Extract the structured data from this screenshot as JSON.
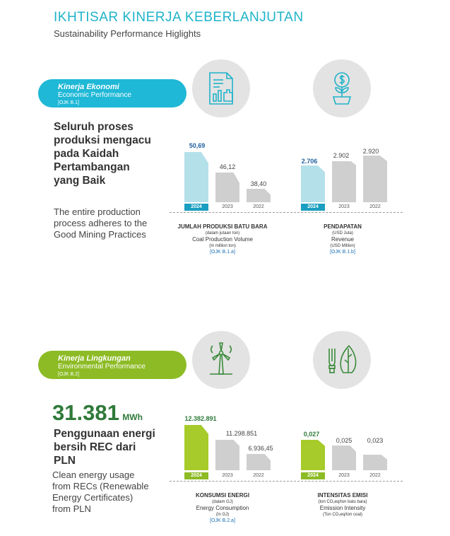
{
  "header": {
    "title_id": "IKHTISAR KINERJA KEBERLANJUTAN",
    "title_en": "Sustainability Performance Higlights"
  },
  "colors": {
    "accent_blue": "#1fb8d6",
    "accent_green": "#8dbb25",
    "bar_gray": "#cfcfcf"
  },
  "economic": {
    "pill": {
      "title_id": "Kinerja Ekonomi",
      "title_en": "Economic Performance",
      "ref": "[OJK B.1]"
    },
    "icons": [
      "building-chart-icon",
      "money-plant-icon"
    ],
    "headline": "Seluruh proses produksi mengacu pada Kaidah Pertambangan yang Baik",
    "subtext": "The entire production process adheres to the Good Mining Practices",
    "charts": [
      {
        "caption_id": "JUMLAH PRODUKSI BATU BARA",
        "caption_id_unit": "(dalam jutaan ton)",
        "caption_en": "Coal Production Volume",
        "caption_en_unit": "(In million ton)",
        "ref": "[OJK B.1.a]",
        "bars": [
          {
            "year": "2024",
            "label": "50,69",
            "value": 50.69
          },
          {
            "year": "2023",
            "label": "46,12",
            "value": 46.12
          },
          {
            "year": "2022",
            "label": "38,40",
            "value": 38.4
          }
        ]
      },
      {
        "caption_id": "PENDAPATAN",
        "caption_id_unit": "(USD Juta)",
        "caption_en": "Revenue",
        "caption_en_unit": "(USD Million)",
        "ref": "[OJK B.1.b]",
        "bars": [
          {
            "year": "2024",
            "label": "2.706",
            "value": 2706
          },
          {
            "year": "2023",
            "label": "2.902",
            "value": 2902
          },
          {
            "year": "2022",
            "label": "2.920",
            "value": 2920
          }
        ]
      }
    ]
  },
  "environmental": {
    "pill": {
      "title_id": "Kinerja Lingkungan",
      "title_en": "Environmental Performance",
      "ref": "[OJK B.2]"
    },
    "icons": [
      "wind-turbine-icon",
      "eco-bulb-leaf-icon"
    ],
    "big_number": "31.381",
    "big_unit": "MWh",
    "headline": "Penggunaan energi bersih REC dari PLN",
    "subtext": "Clean energy usage from RECs (Renewable Energy Certificates) from PLN",
    "charts": [
      {
        "caption_id": "KONSUMSI ENERGI",
        "caption_id_unit": "(dalam GJ)",
        "caption_en": "Energy Consumption",
        "caption_en_unit": "(In GJ)",
        "ref": "[OJK B.2.a]",
        "bars": [
          {
            "year": "2024",
            "label": "12.382.891",
            "value": 12382891
          },
          {
            "year": "2023",
            "label": "11.298.851",
            "value": 11298851
          },
          {
            "year": "2022",
            "label": "6.936,45",
            "value": 6936.45
          }
        ]
      },
      {
        "caption_id": "INTENSITAS EMISI",
        "caption_id_unit": "(ton CO₂eq/ton batu bara)",
        "caption_en": "Emission Intensity",
        "caption_en_unit": "(Ton CO₂eq/ton coal)",
        "ref": "",
        "bars": [
          {
            "year": "2024",
            "label": "0,027",
            "value": 0.027
          },
          {
            "year": "2023",
            "label": "0,025",
            "value": 0.025
          },
          {
            "year": "2022",
            "label": "0,023",
            "value": 0.023
          }
        ]
      }
    ]
  }
}
